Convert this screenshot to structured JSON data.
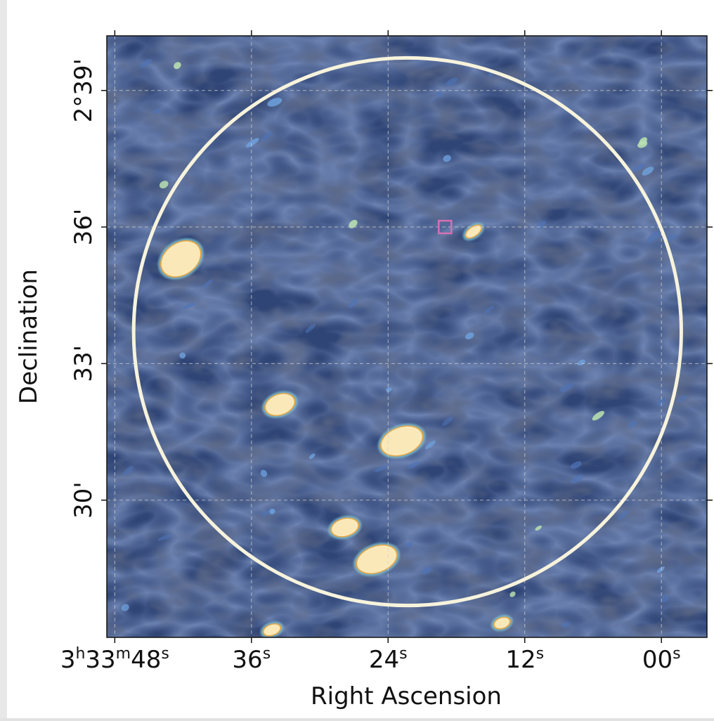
{
  "chart_data": {
    "type": "heatmap",
    "title": "",
    "xlabel": "Right Ascension",
    "ylabel": "Declination",
    "x_ticks": [
      {
        "value_s": 48,
        "h": "3",
        "m": "33",
        "s": "48",
        "sup_h": "h",
        "sup_m": "m",
        "sup_s": "s"
      },
      {
        "value_s": 36,
        "s": "36",
        "sup_s": "s"
      },
      {
        "value_s": 24,
        "s": "24",
        "sup_s": "s"
      },
      {
        "value_s": 12,
        "s": "12",
        "sup_s": "s"
      },
      {
        "value_s": 0,
        "s": "00",
        "sup_s": "s"
      }
    ],
    "y_ticks": [
      {
        "value_arcmin": 39,
        "label": "2°39'"
      },
      {
        "value_arcmin": 36,
        "label": "36'"
      },
      {
        "value_arcmin": 33,
        "label": "33'"
      },
      {
        "value_arcmin": 30,
        "label": "30'"
      }
    ],
    "ra_range_s": [
      48.7,
      -4.0
    ],
    "dec_range_arcmin": [
      26.985,
      40.2
    ],
    "grid": true,
    "circle": {
      "center_ra_s": 22.3,
      "center_dec_arcmin": 33.7,
      "radius_arcmin": 6.0,
      "color": "#f7f3dc"
    },
    "marker": {
      "ra_s": 19.0,
      "dec_arcmin": 36.0,
      "color": "#d870b3"
    },
    "sources": [
      {
        "ra_s": 42.2,
        "dec_arcmin": 35.3,
        "peak": 1.0
      },
      {
        "ra_s": 33.5,
        "dec_arcmin": 32.1,
        "peak": 0.95
      },
      {
        "ra_s": 22.8,
        "dec_arcmin": 31.3,
        "peak": 1.0
      },
      {
        "ra_s": 27.8,
        "dec_arcmin": 29.4,
        "peak": 0.9
      },
      {
        "ra_s": 25.0,
        "dec_arcmin": 28.7,
        "peak": 1.0
      },
      {
        "ra_s": 16.5,
        "dec_arcmin": 35.9,
        "peak": 0.85
      },
      {
        "ra_s": 34.2,
        "dec_arcmin": 27.15,
        "peak": 0.8
      },
      {
        "ra_s": 14.0,
        "dec_arcmin": 27.3,
        "peak": 0.75
      }
    ],
    "colormap": [
      "#1b1f2e",
      "#2a3658",
      "#3a5088",
      "#5a8ac8",
      "#8cd0c8",
      "#f4eca0",
      "#f6e6b0",
      "#fbe9b8"
    ]
  }
}
